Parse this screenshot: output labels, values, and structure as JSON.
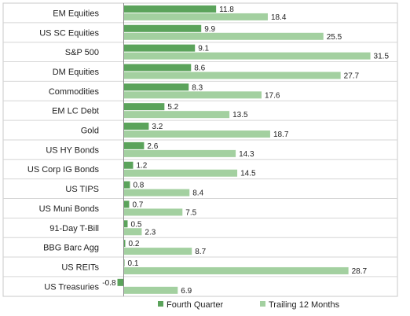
{
  "chart_data": {
    "type": "bar",
    "orientation": "horizontal",
    "categories": [
      "EM Equities",
      "US SC Equities",
      "S&P 500",
      "DM Equities",
      "Commodities",
      "EM LC Debt",
      "Gold",
      "US HY Bonds",
      "US Corp IG Bonds",
      "US TIPS",
      "US Muni Bonds",
      "91-Day T-Bill",
      "BBG Barc Agg",
      "US REITs",
      "US Treasuries"
    ],
    "series": [
      {
        "name": "Fourth Quarter",
        "color": "#5ba35b",
        "values": [
          11.8,
          9.9,
          9.1,
          8.6,
          8.3,
          5.2,
          3.2,
          2.6,
          1.2,
          0.8,
          0.7,
          0.5,
          0.2,
          0.1,
          -0.8
        ]
      },
      {
        "name": "Trailing 12 Months",
        "color": "#a3d0a0",
        "values": [
          18.4,
          25.5,
          31.5,
          27.7,
          17.6,
          13.5,
          18.7,
          14.3,
          14.5,
          8.4,
          7.5,
          2.3,
          8.7,
          28.7,
          6.9
        ]
      }
    ],
    "value_labels": [
      [
        "11.8",
        "9.9",
        "9.1",
        "8.6",
        "8.3",
        "5.2",
        "3.2",
        "2.6",
        "1.2",
        "0.8",
        "0.7",
        "0.5",
        "0.2",
        "0.1",
        "-0.8"
      ],
      [
        "18.4",
        "25.5",
        "31.5",
        "27.7",
        "17.6",
        "13.5",
        "18.7",
        "14.3",
        "14.5",
        "8.4",
        "7.5",
        "2.3",
        "8.7",
        "28.7",
        "6.9"
      ]
    ],
    "xlim": [
      -1,
      32
    ],
    "grid": "horizontal separators",
    "legend_position": "bottom"
  }
}
